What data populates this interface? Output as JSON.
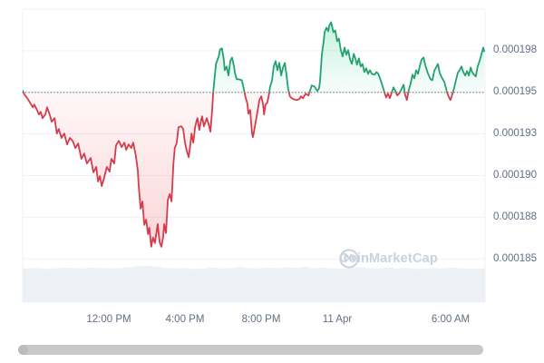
{
  "watermark": {
    "text": "CoinMarketCap"
  },
  "colors": {
    "up": "#23a26d",
    "down": "#d63c4b",
    "up_fill": "#16c784",
    "down_fill": "#ea3943",
    "grid": "#eef1f6",
    "axis_text": "#616e85",
    "volume": "#edf0f4",
    "baseline_dots": "#8a909c",
    "scrollbar": "#c7c8ca",
    "watermark": "#cbd2df"
  },
  "chart_data": {
    "type": "line",
    "title": "",
    "x_ticks": [
      {
        "label": "12:00 PM",
        "t": 0.186
      },
      {
        "label": "4:00 PM",
        "t": 0.351
      },
      {
        "label": "8:00 PM",
        "t": 0.516
      },
      {
        "label": "11 Apr",
        "t": 0.68
      },
      {
        "label": "6:00 AM",
        "t": 0.925
      }
    ],
    "y_ticks": [
      {
        "label": "0.000198",
        "value": 197.5
      },
      {
        "label": "0.000195",
        "value": 195.0
      },
      {
        "label": "0.000193",
        "value": 192.5
      },
      {
        "label": "0.000190",
        "value": 190.0
      },
      {
        "label": "0.000188",
        "value": 187.5
      },
      {
        "label": "0.000185",
        "value": 185.0
      }
    ],
    "y_unit": "price x 1e-6",
    "ylim": [
      182.4,
      200.0
    ],
    "baseline_value": 195.0,
    "grid": true,
    "legend": false,
    "series": [
      {
        "name": "price",
        "points": [
          [
            0,
            195.11
          ],
          [
            0.004,
            194.86
          ],
          [
            0.01,
            194.65
          ],
          [
            0.016,
            194.37
          ],
          [
            0.022,
            194.1
          ],
          [
            0.025,
            194.27
          ],
          [
            0.031,
            193.94
          ],
          [
            0.035,
            193.67
          ],
          [
            0.039,
            193.83
          ],
          [
            0.043,
            193.45
          ],
          [
            0.049,
            193.67
          ],
          [
            0.053,
            194.1
          ],
          [
            0.057,
            193.78
          ],
          [
            0.063,
            193.23
          ],
          [
            0.069,
            193.45
          ],
          [
            0.074,
            192.53
          ],
          [
            0.078,
            192.8
          ],
          [
            0.084,
            192.26
          ],
          [
            0.09,
            192.53
          ],
          [
            0.096,
            191.87
          ],
          [
            0.102,
            192.26
          ],
          [
            0.108,
            192.09
          ],
          [
            0.114,
            191.66
          ],
          [
            0.12,
            191.93
          ],
          [
            0.127,
            191.01
          ],
          [
            0.133,
            191.33
          ],
          [
            0.139,
            190.73
          ],
          [
            0.147,
            191.06
          ],
          [
            0.153,
            190.19
          ],
          [
            0.159,
            190.52
          ],
          [
            0.163,
            189.65
          ],
          [
            0.167,
            189.97
          ],
          [
            0.171,
            189.37
          ],
          [
            0.176,
            189.86
          ],
          [
            0.182,
            190.52
          ],
          [
            0.188,
            190.24
          ],
          [
            0.192,
            191.01
          ],
          [
            0.198,
            190.73
          ],
          [
            0.202,
            191.82
          ],
          [
            0.208,
            192.09
          ],
          [
            0.214,
            191.71
          ],
          [
            0.22,
            191.98
          ],
          [
            0.224,
            191.55
          ],
          [
            0.229,
            191.87
          ],
          [
            0.235,
            191.66
          ],
          [
            0.239,
            191.98
          ],
          [
            0.245,
            191.17
          ],
          [
            0.249,
            190.3
          ],
          [
            0.251,
            189.37
          ],
          [
            0.255,
            188.02
          ],
          [
            0.259,
            188.45
          ],
          [
            0.263,
            187.04
          ],
          [
            0.267,
            187.36
          ],
          [
            0.271,
            186.49
          ],
          [
            0.274,
            186.87
          ],
          [
            0.278,
            185.73
          ],
          [
            0.282,
            186.28
          ],
          [
            0.286,
            185.95
          ],
          [
            0.292,
            187.09
          ],
          [
            0.296,
            186.01
          ],
          [
            0.3,
            185.73
          ],
          [
            0.304,
            186.33
          ],
          [
            0.306,
            187.09
          ],
          [
            0.31,
            186.55
          ],
          [
            0.314,
            188.56
          ],
          [
            0.318,
            188.89
          ],
          [
            0.322,
            188.45
          ],
          [
            0.326,
            190.73
          ],
          [
            0.329,
            191.66
          ],
          [
            0.333,
            191.93
          ],
          [
            0.337,
            192.91
          ],
          [
            0.343,
            192.96
          ],
          [
            0.347,
            192.8
          ],
          [
            0.351,
            191.98
          ],
          [
            0.355,
            191.49
          ],
          [
            0.359,
            191.11
          ],
          [
            0.363,
            191.93
          ],
          [
            0.365,
            192.53
          ],
          [
            0.369,
            191.98
          ],
          [
            0.373,
            192.91
          ],
          [
            0.376,
            193.29
          ],
          [
            0.378,
            193.45
          ],
          [
            0.382,
            192.74
          ],
          [
            0.386,
            193.34
          ],
          [
            0.388,
            193.56
          ],
          [
            0.392,
            192.96
          ],
          [
            0.398,
            193.45
          ],
          [
            0.402,
            193.12
          ],
          [
            0.406,
            192.64
          ],
          [
            0.41,
            193.99
          ],
          [
            0.412,
            194.97
          ],
          [
            0.418,
            196.71
          ],
          [
            0.424,
            197.15
          ],
          [
            0.427,
            197.58
          ],
          [
            0.431,
            197.64
          ],
          [
            0.435,
            196.98
          ],
          [
            0.437,
            196.33
          ],
          [
            0.441,
            196.55
          ],
          [
            0.445,
            196.01
          ],
          [
            0.449,
            196.88
          ],
          [
            0.453,
            197.09
          ],
          [
            0.457,
            196.55
          ],
          [
            0.459,
            196.17
          ],
          [
            0.463,
            195.79
          ],
          [
            0.467,
            195.79
          ],
          [
            0.474,
            195.73
          ],
          [
            0.478,
            195.24
          ],
          [
            0.482,
            194.7
          ],
          [
            0.486,
            194.32
          ],
          [
            0.488,
            193.72
          ],
          [
            0.492,
            193.94
          ],
          [
            0.496,
            192.53
          ],
          [
            0.498,
            192.31
          ],
          [
            0.502,
            192.91
          ],
          [
            0.506,
            193.56
          ],
          [
            0.512,
            194.54
          ],
          [
            0.516,
            194.76
          ],
          [
            0.52,
            194.27
          ],
          [
            0.522,
            193.67
          ],
          [
            0.525,
            194.27
          ],
          [
            0.529,
            194.38
          ],
          [
            0.533,
            194.92
          ],
          [
            0.535,
            195.35
          ],
          [
            0.539,
            195.68
          ],
          [
            0.543,
            196.55
          ],
          [
            0.547,
            196.88
          ],
          [
            0.551,
            196.33
          ],
          [
            0.555,
            196.77
          ],
          [
            0.559,
            196.01
          ],
          [
            0.563,
            196.49
          ],
          [
            0.567,
            196.77
          ],
          [
            0.571,
            195.95
          ],
          [
            0.574,
            195.24
          ],
          [
            0.578,
            194.76
          ],
          [
            0.582,
            194.65
          ],
          [
            0.586,
            194.59
          ],
          [
            0.592,
            194.54
          ],
          [
            0.598,
            194.59
          ],
          [
            0.602,
            194.76
          ],
          [
            0.606,
            194.65
          ],
          [
            0.612,
            194.92
          ],
          [
            0.618,
            194.81
          ],
          [
            0.622,
            195.14
          ],
          [
            0.625,
            195.41
          ],
          [
            0.631,
            195.35
          ],
          [
            0.637,
            195.08
          ],
          [
            0.641,
            195.24
          ],
          [
            0.643,
            195.63
          ],
          [
            0.647,
            197.26
          ],
          [
            0.651,
            198.07
          ],
          [
            0.653,
            198.61
          ],
          [
            0.657,
            198.89
          ],
          [
            0.661,
            198.67
          ],
          [
            0.663,
            199.0
          ],
          [
            0.667,
            199.21
          ],
          [
            0.672,
            198.61
          ],
          [
            0.676,
            198.72
          ],
          [
            0.68,
            198.07
          ],
          [
            0.684,
            198.23
          ],
          [
            0.688,
            197.53
          ],
          [
            0.692,
            197.15
          ],
          [
            0.696,
            197.69
          ],
          [
            0.7,
            197.26
          ],
          [
            0.704,
            197.53
          ],
          [
            0.708,
            196.98
          ],
          [
            0.712,
            196.71
          ],
          [
            0.716,
            197.31
          ],
          [
            0.72,
            196.98
          ],
          [
            0.723,
            196.66
          ],
          [
            0.727,
            197.04
          ],
          [
            0.731,
            196.55
          ],
          [
            0.735,
            196.71
          ],
          [
            0.739,
            196.22
          ],
          [
            0.743,
            196.44
          ],
          [
            0.747,
            196.11
          ],
          [
            0.751,
            196.33
          ],
          [
            0.755,
            196.11
          ],
          [
            0.761,
            196.06
          ],
          [
            0.765,
            196.22
          ],
          [
            0.769,
            196.11
          ],
          [
            0.772,
            195.9
          ],
          [
            0.778,
            195.41
          ],
          [
            0.782,
            195.03
          ],
          [
            0.786,
            194.7
          ],
          [
            0.79,
            194.92
          ],
          [
            0.794,
            194.65
          ],
          [
            0.798,
            194.97
          ],
          [
            0.802,
            195.3
          ],
          [
            0.806,
            195.08
          ],
          [
            0.81,
            194.81
          ],
          [
            0.814,
            194.92
          ],
          [
            0.82,
            195.24
          ],
          [
            0.824,
            195.46
          ],
          [
            0.827,
            194.86
          ],
          [
            0.831,
            194.54
          ],
          [
            0.835,
            195.14
          ],
          [
            0.839,
            195.52
          ],
          [
            0.843,
            196.06
          ],
          [
            0.847,
            195.84
          ],
          [
            0.851,
            196.33
          ],
          [
            0.855,
            196.11
          ],
          [
            0.859,
            196.6
          ],
          [
            0.863,
            196.98
          ],
          [
            0.867,
            197.09
          ],
          [
            0.871,
            196.6
          ],
          [
            0.876,
            196.17
          ],
          [
            0.882,
            195.79
          ],
          [
            0.886,
            195.73
          ],
          [
            0.89,
            196.28
          ],
          [
            0.894,
            196.49
          ],
          [
            0.898,
            196.71
          ],
          [
            0.902,
            196.17
          ],
          [
            0.906,
            195.9
          ],
          [
            0.912,
            195.63
          ],
          [
            0.918,
            194.97
          ],
          [
            0.922,
            194.7
          ],
          [
            0.925,
            194.54
          ],
          [
            0.929,
            194.86
          ],
          [
            0.933,
            195.24
          ],
          [
            0.937,
            195.73
          ],
          [
            0.941,
            196.17
          ],
          [
            0.945,
            196.33
          ],
          [
            0.949,
            196.55
          ],
          [
            0.953,
            196.22
          ],
          [
            0.957,
            196.01
          ],
          [
            0.961,
            196.28
          ],
          [
            0.965,
            196.01
          ],
          [
            0.969,
            196.49
          ],
          [
            0.972,
            196.22
          ],
          [
            0.976,
            196.06
          ],
          [
            0.98,
            195.95
          ],
          [
            0.984,
            196.55
          ],
          [
            0.988,
            196.88
          ],
          [
            0.992,
            197.26
          ],
          [
            0.996,
            197.69
          ],
          [
            0.998,
            197.47
          ]
        ]
      }
    ],
    "volume_profile": [
      0.93,
      0.94,
      0.92,
      0.93,
      0.95,
      0.94,
      0.93,
      0.95,
      0.94,
      0.93,
      0.94,
      0.96,
      0.99,
      1.0,
      0.97,
      0.94,
      0.93,
      0.94,
      0.92,
      0.93,
      0.95,
      0.93,
      0.94,
      0.96,
      0.94,
      0.93,
      0.95,
      0.94,
      0.96,
      0.95,
      0.97,
      0.94,
      0.95,
      0.93,
      0.92,
      0.94,
      0.96,
      0.94,
      0.93,
      0.95,
      0.93,
      0.94,
      0.92,
      0.93,
      0.94,
      0.93,
      0.95,
      0.93,
      0.92,
      0.93
    ]
  }
}
